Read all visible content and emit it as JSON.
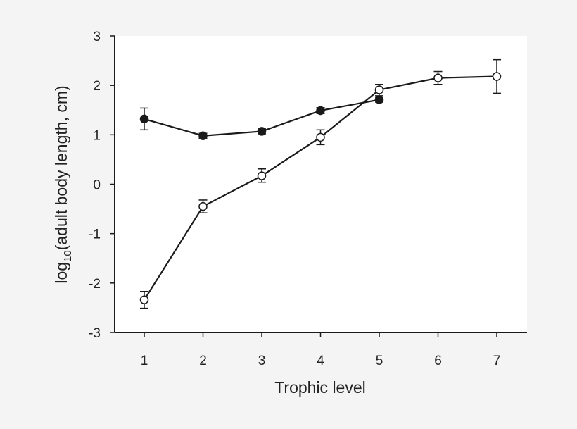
{
  "chart_data": {
    "type": "line",
    "title": "",
    "xlabel": "Trophic level",
    "ylabel": "log10(adult body length, cm)",
    "ylabel_parts": {
      "prefix": "log",
      "subscript": "10",
      "suffix": "(adult body length, cm)"
    },
    "xlim": [
      0.5,
      7.5
    ],
    "ylim": [
      -3,
      3
    ],
    "x_ticks": [
      1,
      2,
      3,
      4,
      5,
      6,
      7
    ],
    "y_ticks": [
      -3,
      -2,
      -1,
      0,
      1,
      2,
      3
    ],
    "grid": false,
    "legend": null,
    "series": [
      {
        "name": "filled circles",
        "marker": "filled-circle",
        "x": [
          1,
          2,
          3,
          4,
          5
        ],
        "values": [
          1.32,
          0.98,
          1.07,
          1.49,
          1.71
        ],
        "err_low": [
          1.1,
          0.93,
          1.02,
          1.43,
          1.66
        ],
        "err_high": [
          1.54,
          1.03,
          1.12,
          1.55,
          1.76
        ]
      },
      {
        "name": "open circles",
        "marker": "open-circle",
        "x": [
          1,
          2,
          3,
          4,
          5,
          6,
          7
        ],
        "values": [
          -2.34,
          -0.45,
          0.17,
          0.95,
          1.91,
          2.15,
          2.18
        ],
        "err_low": [
          -2.51,
          -0.58,
          0.04,
          0.8,
          1.79,
          2.02,
          1.84
        ],
        "err_high": [
          -2.17,
          -0.32,
          0.31,
          1.1,
          2.02,
          2.28,
          2.52
        ]
      }
    ]
  },
  "colors": {
    "page_background": "#f4f4f4",
    "plot_background": "#ffffff",
    "line": "#1a1a1a",
    "text": "#222222"
  }
}
